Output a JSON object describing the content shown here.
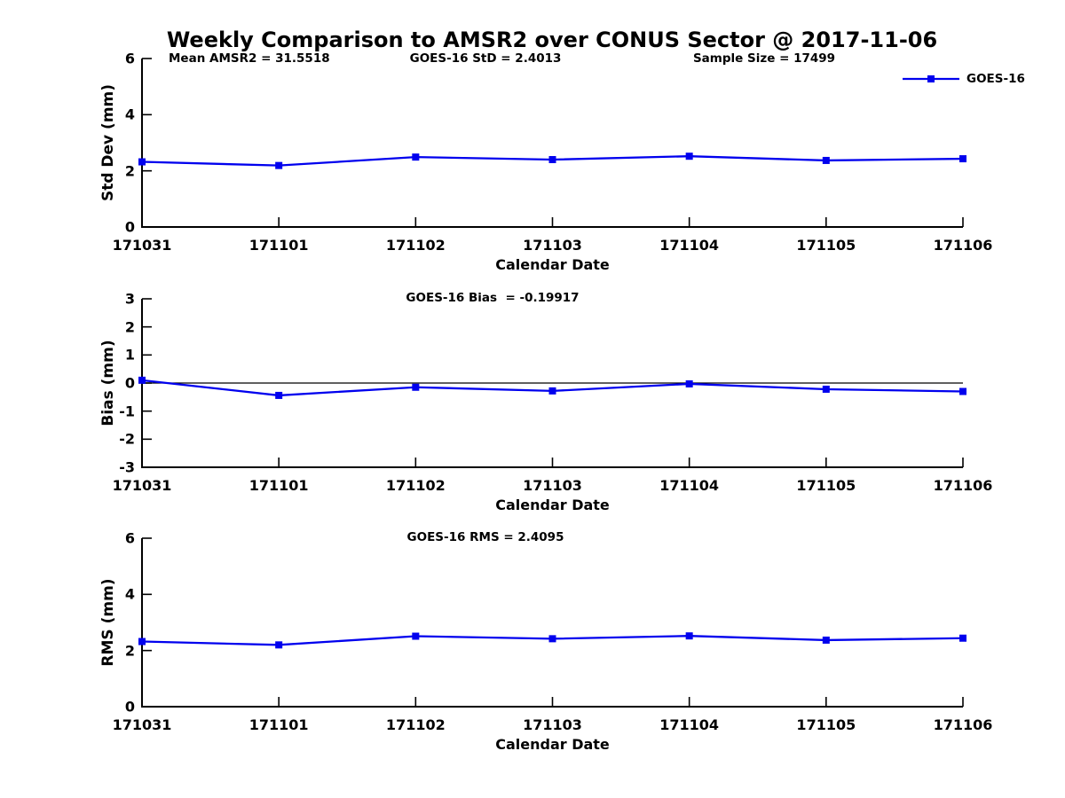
{
  "title": "Weekly Comparison to AMSR2 over CONUS Sector @ 2017-11-06",
  "annotations": {
    "mean_amsr2": "Mean AMSR2 = 31.5518",
    "goes16_std": "GOES-16 StD = 2.4013",
    "sample_size": "Sample Size = 17499"
  },
  "legend": {
    "label": "GOES-16",
    "marker": "square",
    "position": "top-right"
  },
  "colors": {
    "series_line": "#0000EE",
    "axis": "#000000",
    "zero_line": "#000000",
    "background": "#FFFFFF"
  },
  "chart_data": [
    {
      "type": "line",
      "x": [
        "171031",
        "171101",
        "171102",
        "171103",
        "171104",
        "171105",
        "171106"
      ],
      "series": [
        {
          "name": "GOES-16",
          "values": [
            2.32,
            2.19,
            2.49,
            2.4,
            2.52,
            2.37,
            2.43
          ]
        }
      ],
      "ylabel": "Std Dev (mm)",
      "xlabel": "Calendar Date",
      "ylim": [
        0,
        6
      ],
      "yticks": [
        0,
        2,
        4,
        6
      ],
      "grid": false,
      "zero_line": false
    },
    {
      "type": "line",
      "subtitle": "GOES-16 Bias  = -0.19917",
      "x": [
        "171031",
        "171101",
        "171102",
        "171103",
        "171104",
        "171105",
        "171106"
      ],
      "series": [
        {
          "name": "GOES-16",
          "values": [
            0.1,
            -0.44,
            -0.15,
            -0.28,
            -0.03,
            -0.22,
            -0.3
          ]
        }
      ],
      "ylabel": "Bias (mm)",
      "xlabel": "Calendar Date",
      "ylim": [
        -3,
        3
      ],
      "yticks": [
        3,
        2,
        1,
        0,
        -1,
        -2,
        -3
      ],
      "grid": false,
      "zero_line": true
    },
    {
      "type": "line",
      "subtitle": "GOES-16 RMS = 2.4095",
      "x": [
        "171031",
        "171101",
        "171102",
        "171103",
        "171104",
        "171105",
        "171106"
      ],
      "series": [
        {
          "name": "GOES-16",
          "values": [
            2.32,
            2.2,
            2.51,
            2.42,
            2.52,
            2.37,
            2.44
          ]
        }
      ],
      "ylabel": "RMS (mm)",
      "xlabel": "Calendar Date",
      "ylim": [
        0,
        6
      ],
      "yticks": [
        0,
        2,
        4,
        6
      ],
      "grid": false,
      "zero_line": false
    }
  ]
}
